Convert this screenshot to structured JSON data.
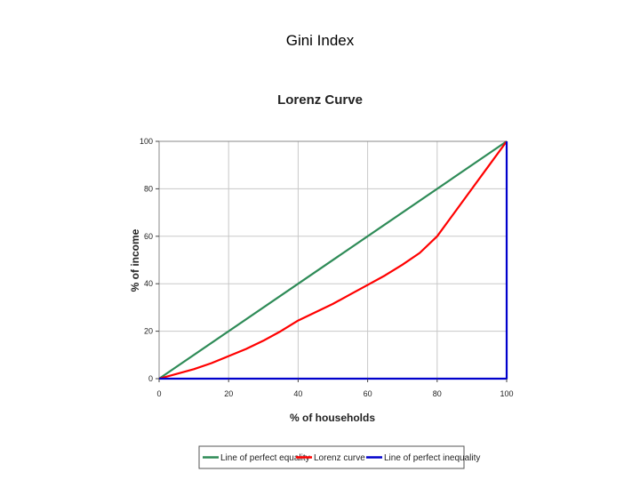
{
  "slide": {
    "title": "Gini Index"
  },
  "chart_data": {
    "type": "line",
    "title": "Lorenz Curve",
    "xlabel": "% of households",
    "ylabel": "% of income",
    "xlim": [
      0,
      100
    ],
    "ylim": [
      0,
      100
    ],
    "x_ticks": [
      0,
      20,
      40,
      60,
      80,
      100
    ],
    "y_ticks": [
      0,
      20,
      40,
      60,
      80,
      100
    ],
    "grid": true,
    "legend_position": "bottom",
    "series": [
      {
        "name": "Line of perfect equality",
        "color": "#2e8b57",
        "points": [
          [
            0,
            0
          ],
          [
            100,
            100
          ]
        ]
      },
      {
        "name": "Lorenz curve",
        "color": "#ff0000",
        "points": [
          [
            0,
            0
          ],
          [
            5,
            2
          ],
          [
            10,
            4
          ],
          [
            15,
            6.5
          ],
          [
            20,
            9.5
          ],
          [
            25,
            12.5
          ],
          [
            30,
            16
          ],
          [
            35,
            20
          ],
          [
            40,
            24.5
          ],
          [
            45,
            28
          ],
          [
            50,
            31.5
          ],
          [
            55,
            35.5
          ],
          [
            60,
            39.5
          ],
          [
            65,
            43.5
          ],
          [
            70,
            48
          ],
          [
            75,
            53
          ],
          [
            80,
            60
          ],
          [
            85,
            70
          ],
          [
            90,
            80
          ],
          [
            95,
            90
          ],
          [
            100,
            100
          ]
        ]
      },
      {
        "name": "Line of perfect inequality",
        "color": "#0000cc",
        "points": [
          [
            0,
            0
          ],
          [
            100,
            0
          ],
          [
            100,
            100
          ]
        ]
      }
    ]
  }
}
